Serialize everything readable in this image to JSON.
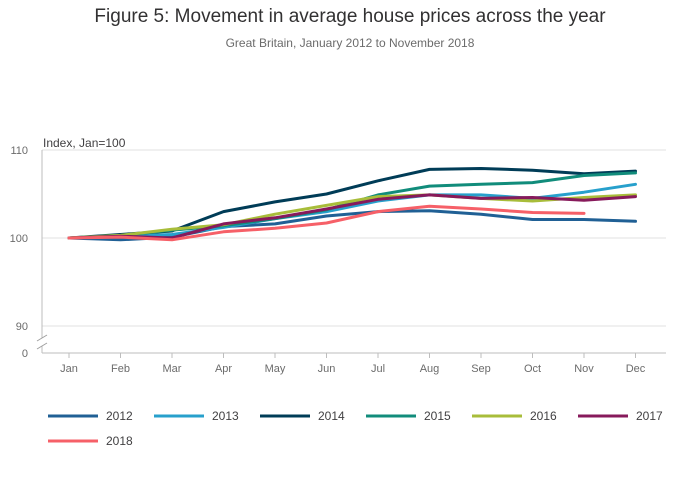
{
  "title": "Figure 5: Movement in average house prices across the year",
  "subtitle": "Great Britain, January 2012 to November 2018",
  "chart_data": {
    "type": "line",
    "title": "Figure 5: Movement in average house prices across the year",
    "subtitle": "Great Britain, January 2012 to November 2018",
    "ylabel": "Index, Jan=100",
    "xlabel": "",
    "ylim": [
      90,
      110
    ],
    "y_ticks": [
      "110",
      "100",
      "90",
      "0"
    ],
    "y_axis_break": true,
    "grid": true,
    "legend_position": "bottom",
    "categories": [
      "Jan",
      "Feb",
      "Mar",
      "Apr",
      "May",
      "Jun",
      "Jul",
      "Aug",
      "Sep",
      "Oct",
      "Nov",
      "Dec"
    ],
    "series": [
      {
        "name": "2012",
        "color": "#206095",
        "values": [
          100,
          99.8,
          100.1,
          101.3,
          101.6,
          102.5,
          103.0,
          103.1,
          102.7,
          102.1,
          102.1,
          101.9
        ]
      },
      {
        "name": "2013",
        "color": "#27a0cc",
        "values": [
          100,
          100.2,
          100.4,
          101.2,
          102.2,
          103.0,
          104.2,
          104.9,
          104.9,
          104.5,
          105.2,
          106.1
        ]
      },
      {
        "name": "2014",
        "color": "#003c57",
        "values": [
          100,
          100.4,
          100.8,
          103.0,
          104.1,
          105.0,
          106.5,
          107.8,
          107.9,
          107.7,
          107.3,
          107.6
        ]
      },
      {
        "name": "2015",
        "color": "#118c7b",
        "values": [
          100,
          100.3,
          100.9,
          101.4,
          102.2,
          103.2,
          104.9,
          105.9,
          106.1,
          106.3,
          107.1,
          107.4
        ]
      },
      {
        "name": "2016",
        "color": "#a8bd3a",
        "values": [
          100,
          100.3,
          101.0,
          101.5,
          102.7,
          103.7,
          104.7,
          104.9,
          104.5,
          104.2,
          104.6,
          104.9
        ]
      },
      {
        "name": "2017",
        "color": "#871a5b",
        "values": [
          100,
          100.2,
          100.0,
          101.6,
          102.3,
          103.3,
          104.4,
          104.9,
          104.5,
          104.6,
          104.3,
          104.7
        ]
      },
      {
        "name": "2018",
        "color": "#f66068",
        "values": [
          100,
          100.1,
          99.8,
          100.7,
          101.1,
          101.7,
          103.0,
          103.6,
          103.3,
          102.9,
          102.8,
          null
        ]
      }
    ]
  }
}
